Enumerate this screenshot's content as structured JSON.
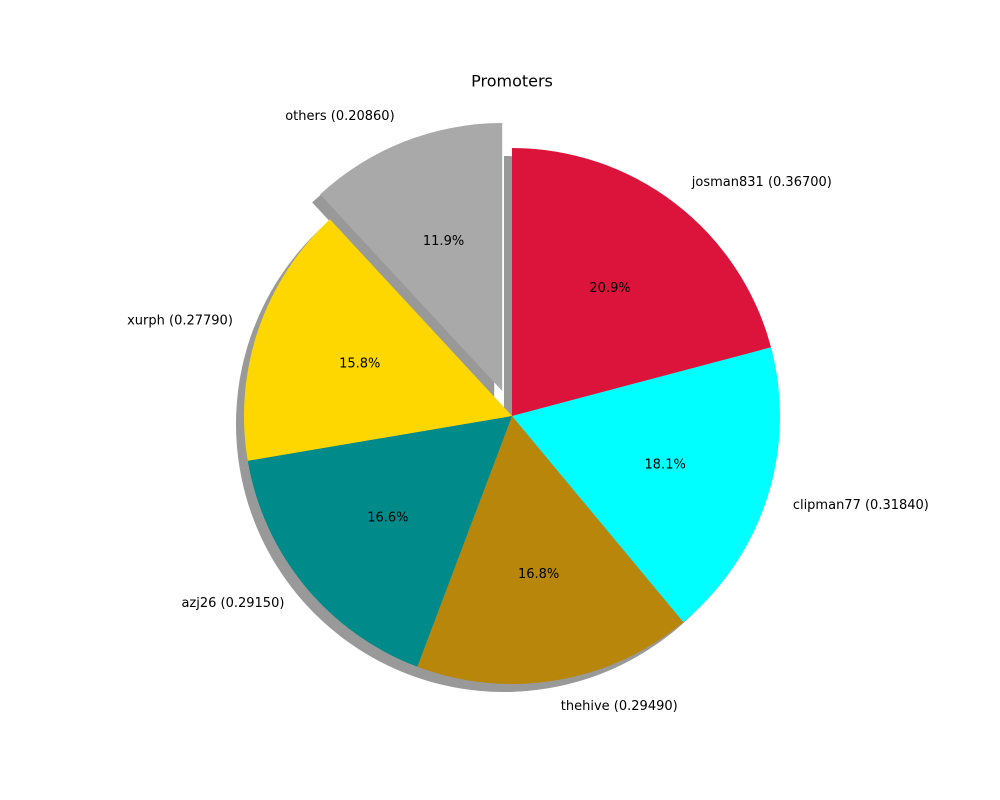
{
  "chart_data": {
    "type": "pie",
    "title": "Promoters",
    "categories": [
      "josman831 (0.36700)",
      "clipman77 (0.31840)",
      "thehive (0.29490)",
      "azj26 (0.29150)",
      "xurph (0.27790)",
      "others (0.20860)"
    ],
    "values": [
      20.9,
      18.1,
      16.8,
      16.6,
      15.8,
      11.9
    ],
    "value_labels": [
      "20.9%",
      "18.1%",
      "16.8%",
      "16.6%",
      "15.8%",
      "11.9%"
    ],
    "colors": [
      "#dc143c",
      "#00ffff",
      "#b8860b",
      "#008b8b",
      "#ffd700",
      "#a9a9a9"
    ],
    "explode": [
      0,
      0,
      0,
      0,
      0,
      0.1
    ],
    "shadow": true
  }
}
